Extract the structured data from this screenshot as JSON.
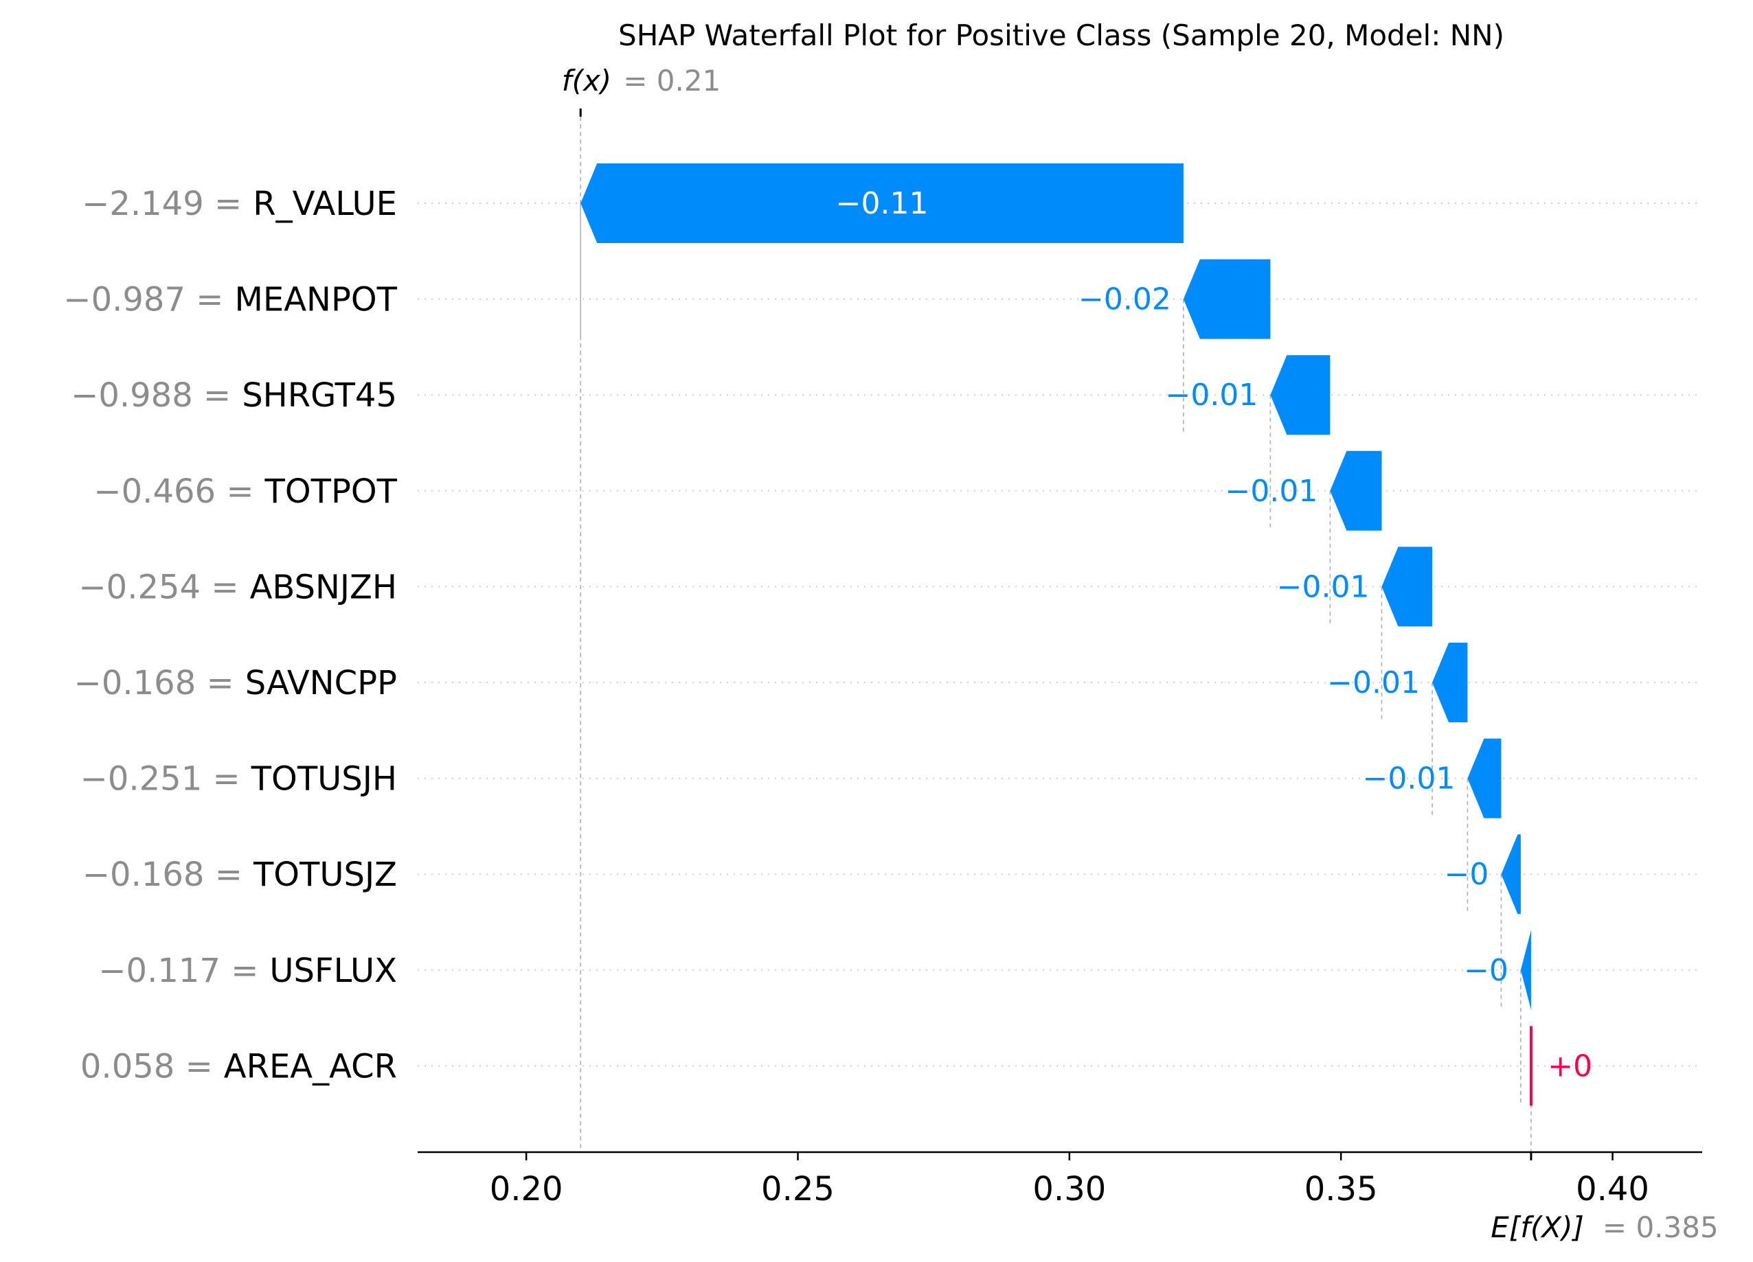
{
  "chart_data": {
    "type": "waterfall",
    "title": "SHAP Waterfall Plot for Positive Class (Sample 20, Model: NN)",
    "fx_label": "f(x)",
    "fx_value": 0.21,
    "fx_value_text": "= 0.21",
    "base_label": "E[f(X)]",
    "base_value": 0.385,
    "base_value_text": "= 0.385",
    "xlim": [
      0.18,
      0.4165
    ],
    "x_ticks": [
      0.2,
      0.25,
      0.3,
      0.35,
      0.4
    ],
    "x_tick_labels": [
      "0.20",
      "0.25",
      "0.30",
      "0.35",
      "0.40"
    ],
    "colors": {
      "negative": "#008bfb",
      "positive": "#ff0051",
      "value_text": "#8c8c8c"
    },
    "features": [
      {
        "name": "R_VALUE",
        "value_text": "−2.149 =",
        "start": 0.321,
        "end": 0.21,
        "label": "−0.11"
      },
      {
        "name": "MEANPOT",
        "value_text": "−0.987 =",
        "start": 0.337,
        "end": 0.321,
        "label": "−0.02"
      },
      {
        "name": "SHRGT45",
        "value_text": "−0.988 =",
        "start": 0.348,
        "end": 0.337,
        "label": "−0.01"
      },
      {
        "name": "TOTPOT",
        "value_text": "−0.466 =",
        "start": 0.3575,
        "end": 0.348,
        "label": "−0.01"
      },
      {
        "name": "ABSNJZH",
        "value_text": "−0.254 =",
        "start": 0.3668,
        "end": 0.3575,
        "label": "−0.01"
      },
      {
        "name": "SAVNCPP",
        "value_text": "−0.168 =",
        "start": 0.3733,
        "end": 0.3668,
        "label": "−0.01"
      },
      {
        "name": "TOTUSJH",
        "value_text": "−0.251 =",
        "start": 0.3795,
        "end": 0.3733,
        "label": "−0.01"
      },
      {
        "name": "TOTUSJZ",
        "value_text": "−0.168 =",
        "start": 0.3831,
        "end": 0.3795,
        "label": "−0"
      },
      {
        "name": "USFLUX",
        "value_text": "−0.117 =",
        "start": 0.385,
        "end": 0.3831,
        "label": "−0"
      },
      {
        "name": "AREA_ACR",
        "value_text": "0.058 =",
        "start": 0.385,
        "end": 0.3853,
        "label": "+0"
      }
    ]
  }
}
